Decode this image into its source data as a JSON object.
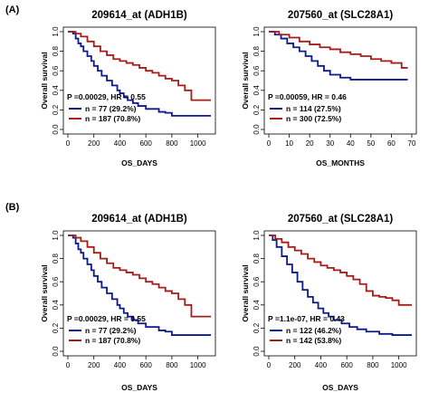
{
  "panels": [
    {
      "label": "(A)"
    },
    {
      "label": "(B)"
    }
  ],
  "chart_data": [
    {
      "type": "line",
      "title": "209614_at (ADH1B)",
      "xlabel": "OS_DAYS",
      "ylabel": "Overall survival",
      "xlim": [
        0,
        1100
      ],
      "ylim": [
        0,
        1
      ],
      "xticks": [
        "0",
        "200",
        "400",
        "600",
        "800",
        "1000"
      ],
      "yticks": [
        "0.0",
        "0.2",
        "0.4",
        "0.6",
        "0.8",
        "1.0"
      ],
      "stat": "P =0.00029, HR = 0.55",
      "series": [
        {
          "name": "n = 77 (29.2%)",
          "color": "#0b1a8c",
          "x": [
            0,
            40,
            60,
            80,
            100,
            120,
            150,
            180,
            200,
            230,
            260,
            300,
            340,
            380,
            400,
            430,
            460,
            500,
            540,
            600,
            700,
            750,
            800,
            1100
          ],
          "y": [
            1.0,
            0.98,
            0.93,
            0.88,
            0.85,
            0.8,
            0.75,
            0.7,
            0.65,
            0.6,
            0.55,
            0.5,
            0.45,
            0.4,
            0.37,
            0.33,
            0.3,
            0.27,
            0.24,
            0.21,
            0.18,
            0.17,
            0.14,
            0.14
          ]
        },
        {
          "name": "n = 187 (70.8%)",
          "color": "#a81b1b",
          "x": [
            0,
            60,
            100,
            150,
            200,
            250,
            300,
            350,
            400,
            450,
            500,
            550,
            600,
            650,
            700,
            750,
            800,
            850,
            900,
            950,
            1100
          ],
          "y": [
            1.0,
            0.98,
            0.95,
            0.9,
            0.85,
            0.8,
            0.76,
            0.72,
            0.7,
            0.68,
            0.66,
            0.63,
            0.6,
            0.58,
            0.55,
            0.52,
            0.5,
            0.45,
            0.4,
            0.3,
            0.3
          ]
        }
      ]
    },
    {
      "type": "line",
      "title": "207560_at (SLC28A1)",
      "xlabel": "OS_MONTHS",
      "ylabel": "Overall survival",
      "xlim": [
        0,
        70
      ],
      "ylim": [
        0,
        1
      ],
      "xticks": [
        "0",
        "10",
        "20",
        "30",
        "40",
        "50",
        "60",
        "70"
      ],
      "yticks": [
        "0.0",
        "0.2",
        "0.4",
        "0.6",
        "0.8",
        "1.0"
      ],
      "stat": "P =0.00059, HR = 0.46",
      "series": [
        {
          "name": "n = 114 (27.5%)",
          "color": "#0b1a8c",
          "x": [
            0,
            3,
            6,
            9,
            12,
            15,
            18,
            21,
            24,
            27,
            30,
            35,
            40,
            50,
            60,
            68
          ],
          "y": [
            1.0,
            0.97,
            0.93,
            0.88,
            0.84,
            0.8,
            0.75,
            0.7,
            0.65,
            0.6,
            0.56,
            0.53,
            0.51,
            0.51,
            0.51,
            0.51
          ]
        },
        {
          "name": "n = 300 (72.5%)",
          "color": "#a81b1b",
          "x": [
            0,
            5,
            10,
            15,
            20,
            25,
            30,
            35,
            40,
            45,
            50,
            55,
            60,
            65,
            68
          ],
          "y": [
            1.0,
            0.97,
            0.94,
            0.9,
            0.87,
            0.84,
            0.82,
            0.79,
            0.77,
            0.75,
            0.72,
            0.7,
            0.68,
            0.63,
            0.63
          ]
        }
      ]
    },
    {
      "type": "line",
      "title": "209614_at (ADH1B)",
      "xlabel": "OS_DAYS",
      "ylabel": "Overall survival",
      "xlim": [
        0,
        1100
      ],
      "ylim": [
        0,
        1
      ],
      "xticks": [
        "0",
        "200",
        "400",
        "600",
        "800",
        "1000"
      ],
      "yticks": [
        "0.0",
        "0.2",
        "0.4",
        "0.6",
        "0.8",
        "1.0"
      ],
      "stat": "P =0.00029, HR = 0.55",
      "series": [
        {
          "name": "n = 77 (29.2%)",
          "color": "#0b1a8c",
          "x": [
            0,
            40,
            60,
            80,
            100,
            120,
            150,
            180,
            200,
            230,
            260,
            300,
            340,
            380,
            400,
            430,
            460,
            500,
            540,
            600,
            700,
            750,
            800,
            1100
          ],
          "y": [
            1.0,
            0.98,
            0.93,
            0.88,
            0.85,
            0.8,
            0.75,
            0.7,
            0.65,
            0.6,
            0.55,
            0.5,
            0.45,
            0.4,
            0.37,
            0.33,
            0.3,
            0.27,
            0.24,
            0.21,
            0.18,
            0.17,
            0.14,
            0.14
          ]
        },
        {
          "name": "n = 187 (70.8%)",
          "color": "#a81b1b",
          "x": [
            0,
            60,
            100,
            150,
            200,
            250,
            300,
            350,
            400,
            450,
            500,
            550,
            600,
            650,
            700,
            750,
            800,
            850,
            900,
            950,
            1100
          ],
          "y": [
            1.0,
            0.98,
            0.95,
            0.9,
            0.85,
            0.8,
            0.76,
            0.72,
            0.7,
            0.68,
            0.66,
            0.63,
            0.6,
            0.58,
            0.55,
            0.52,
            0.5,
            0.45,
            0.4,
            0.3,
            0.3
          ]
        }
      ]
    },
    {
      "type": "line",
      "title": "207560_at (SLC28A1)",
      "xlabel": "OS_DAYS",
      "ylabel": "Overall survival",
      "xlim": [
        0,
        1100
      ],
      "ylim": [
        0,
        1
      ],
      "xticks": [
        "0",
        "200",
        "400",
        "600",
        "800",
        "1000"
      ],
      "yticks": [
        "0.0",
        "0.2",
        "0.4",
        "0.6",
        "0.8",
        "1.0"
      ],
      "stat": "P =1.1e-07, HR = 0.43",
      "series": [
        {
          "name": "n = 122 (46.2%)",
          "color": "#0b1a8c",
          "x": [
            0,
            30,
            60,
            100,
            140,
            180,
            220,
            260,
            300,
            340,
            380,
            420,
            460,
            500,
            560,
            620,
            680,
            750,
            850,
            950,
            1100
          ],
          "y": [
            1.0,
            0.96,
            0.9,
            0.82,
            0.75,
            0.68,
            0.6,
            0.53,
            0.47,
            0.42,
            0.37,
            0.33,
            0.3,
            0.27,
            0.24,
            0.21,
            0.19,
            0.17,
            0.15,
            0.14,
            0.14
          ]
        },
        {
          "name": "n = 142 (53.8%)",
          "color": "#a81b1b",
          "x": [
            0,
            50,
            100,
            150,
            200,
            250,
            300,
            350,
            400,
            450,
            500,
            550,
            600,
            650,
            700,
            750,
            800,
            850,
            900,
            950,
            1000,
            1050,
            1100
          ],
          "y": [
            1.0,
            0.97,
            0.94,
            0.9,
            0.87,
            0.84,
            0.8,
            0.77,
            0.74,
            0.72,
            0.7,
            0.68,
            0.65,
            0.62,
            0.58,
            0.52,
            0.48,
            0.47,
            0.46,
            0.44,
            0.4,
            0.4,
            0.4
          ]
        }
      ]
    }
  ]
}
